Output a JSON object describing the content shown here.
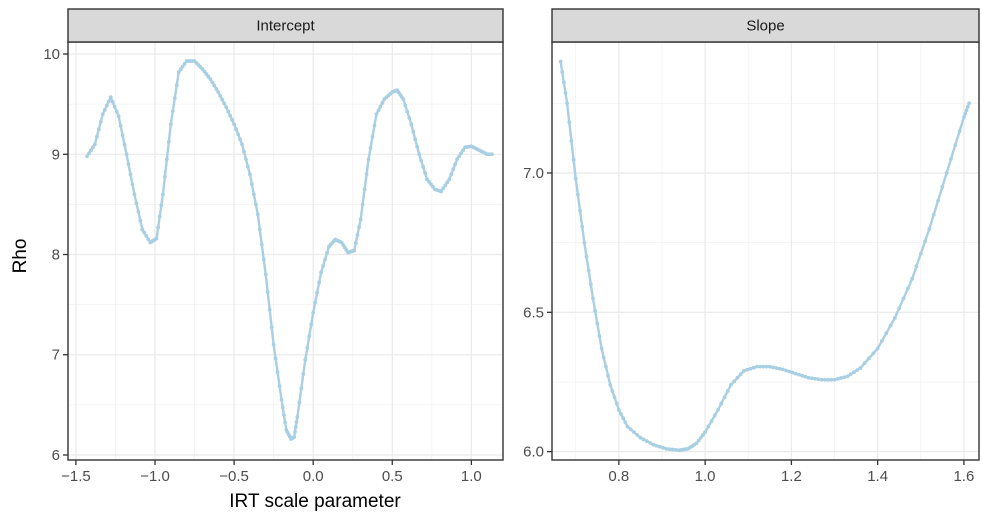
{
  "chart_data": {
    "type": "line",
    "xlabel": "IRT scale parameter",
    "ylabel": "Rho",
    "grid": true,
    "series_color": "#a8cfe2",
    "panels": [
      {
        "name": "Intercept",
        "xlim": [
          -1.55,
          1.2
        ],
        "ylim": [
          5.95,
          10.12
        ],
        "xticks": [
          -1.5,
          -1.0,
          -0.5,
          0.0,
          0.5,
          1.0
        ],
        "xtick_labels": [
          "−1.5",
          "−1.0",
          "−0.5",
          "0.0",
          "0.5",
          "1.0"
        ],
        "yticks": [
          6,
          7,
          8,
          9,
          10
        ],
        "ytick_labels": [
          "6",
          "7",
          "8",
          "9",
          "10"
        ],
        "x": [
          -1.43,
          -1.38,
          -1.33,
          -1.28,
          -1.23,
          -1.18,
          -1.13,
          -1.08,
          -1.03,
          -0.99,
          -0.95,
          -0.9,
          -0.85,
          -0.8,
          -0.75,
          -0.7,
          -0.65,
          -0.6,
          -0.55,
          -0.5,
          -0.45,
          -0.4,
          -0.35,
          -0.3,
          -0.25,
          -0.2,
          -0.17,
          -0.14,
          -0.12,
          -0.1,
          -0.05,
          0.0,
          0.05,
          0.1,
          0.14,
          0.18,
          0.22,
          0.26,
          0.3,
          0.35,
          0.4,
          0.45,
          0.5,
          0.53,
          0.57,
          0.62,
          0.67,
          0.72,
          0.77,
          0.81,
          0.86,
          0.91,
          0.96,
          1.0,
          1.05,
          1.1,
          1.13
        ],
        "y": [
          8.98,
          9.1,
          9.4,
          9.57,
          9.38,
          9.0,
          8.6,
          8.25,
          8.12,
          8.16,
          8.6,
          9.3,
          9.82,
          9.93,
          9.93,
          9.85,
          9.75,
          9.62,
          9.47,
          9.3,
          9.1,
          8.8,
          8.4,
          7.8,
          7.1,
          6.55,
          6.25,
          6.16,
          6.18,
          6.38,
          6.95,
          7.42,
          7.82,
          8.08,
          8.15,
          8.12,
          8.02,
          8.04,
          8.35,
          8.95,
          9.4,
          9.55,
          9.62,
          9.64,
          9.55,
          9.3,
          9.0,
          8.75,
          8.65,
          8.63,
          8.75,
          8.95,
          9.07,
          9.08,
          9.04,
          9.0,
          9.0
        ]
      },
      {
        "name": "Slope",
        "xlim": [
          0.645,
          1.635
        ],
        "ylim": [
          5.97,
          7.47
        ],
        "xticks": [
          0.8,
          1.0,
          1.2,
          1.4,
          1.6
        ],
        "xtick_labels": [
          "0.8",
          "1.0",
          "1.2",
          "1.4",
          "1.6"
        ],
        "yticks": [
          6.0,
          6.5,
          7.0
        ],
        "ytick_labels": [
          "6.0",
          "6.5",
          "7.0"
        ],
        "x": [
          0.665,
          0.68,
          0.7,
          0.72,
          0.74,
          0.76,
          0.78,
          0.8,
          0.82,
          0.85,
          0.88,
          0.91,
          0.94,
          0.96,
          0.98,
          1.0,
          1.03,
          1.06,
          1.09,
          1.12,
          1.15,
          1.18,
          1.21,
          1.24,
          1.27,
          1.3,
          1.33,
          1.36,
          1.4,
          1.44,
          1.48,
          1.52,
          1.56,
          1.6,
          1.612
        ],
        "y": [
          7.4,
          7.25,
          6.98,
          6.75,
          6.55,
          6.37,
          6.24,
          6.15,
          6.09,
          6.05,
          6.025,
          6.01,
          6.005,
          6.01,
          6.03,
          6.07,
          6.15,
          6.24,
          6.29,
          6.305,
          6.305,
          6.295,
          6.28,
          6.265,
          6.258,
          6.258,
          6.27,
          6.3,
          6.37,
          6.48,
          6.62,
          6.8,
          7.0,
          7.2,
          7.25
        ]
      }
    ]
  }
}
